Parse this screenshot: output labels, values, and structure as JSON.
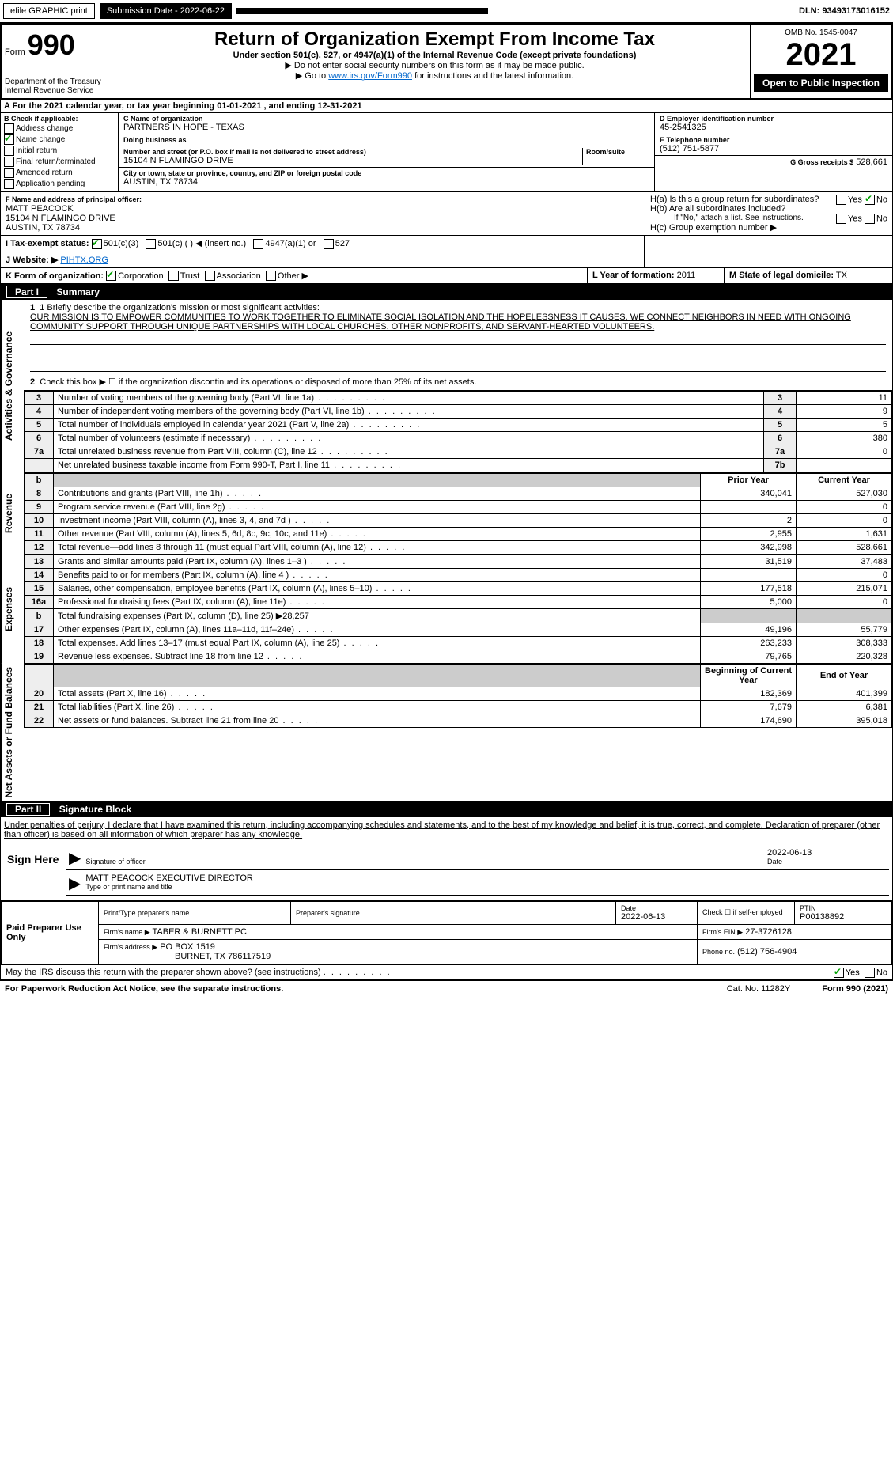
{
  "topbar": {
    "efile": "efile GRAPHIC print",
    "submission_label": "Submission Date - 2022-06-22",
    "dln": "DLN: 93493173016152"
  },
  "header": {
    "form_prefix": "Form",
    "form_number": "990",
    "dept": "Department of the Treasury",
    "irs": "Internal Revenue Service",
    "title": "Return of Organization Exempt From Income Tax",
    "subtitle": "Under section 501(c), 527, or 4947(a)(1) of the Internal Revenue Code (except private foundations)",
    "note1": "▶ Do not enter social security numbers on this form as it may be made public.",
    "note2_pre": "▶ Go to ",
    "note2_link": "www.irs.gov/Form990",
    "note2_post": " for instructions and the latest information.",
    "omb": "OMB No. 1545-0047",
    "year": "2021",
    "open": "Open to Public Inspection"
  },
  "row_a": "For the 2021 calendar year, or tax year beginning 01-01-2021    , and ending 12-31-2021",
  "b": {
    "title": "B Check if applicable:",
    "opts": [
      "Address change",
      "Name change",
      "Initial return",
      "Final return/terminated",
      "Amended return",
      "Application pending"
    ],
    "checked_idx": 1
  },
  "c": {
    "label": "C Name of organization",
    "name": "PARTNERS IN HOPE - TEXAS",
    "dba_label": "Doing business as",
    "dba": "",
    "addr_label": "Number and street (or P.O. box if mail is not delivered to street address)",
    "room_label": "Room/suite",
    "addr": "15104 N FLAMINGO DRIVE",
    "city_label": "City or town, state or province, country, and ZIP or foreign postal code",
    "city": "AUSTIN, TX  78734"
  },
  "d": {
    "label": "D Employer identification number",
    "value": "45-2541325"
  },
  "e": {
    "label": "E Telephone number",
    "value": "(512) 751-5877"
  },
  "g": {
    "label": "G Gross receipts $",
    "value": "528,661"
  },
  "f": {
    "label": "F  Name and address of principal officer:",
    "name": "MATT PEACOCK",
    "addr1": "15104 N FLAMINGO DRIVE",
    "addr2": "AUSTIN, TX  78734"
  },
  "h": {
    "a": "H(a)  Is this a group return for subordinates?",
    "b": "H(b)  Are all subordinates included?",
    "b_note": "If \"No,\" attach a list. See instructions.",
    "c": "H(c)  Group exemption number ▶",
    "yes": "Yes",
    "no": "No"
  },
  "i": {
    "label": "I   Tax-exempt status:",
    "o1": "501(c)(3)",
    "o2": "501(c) (  ) ◀ (insert no.)",
    "o3": "4947(a)(1) or",
    "o4": "527"
  },
  "j": {
    "label": "J   Website: ▶",
    "value": "PIHTX.ORG"
  },
  "k": {
    "label": "K Form of organization:",
    "opts": [
      "Corporation",
      "Trust",
      "Association",
      "Other ▶"
    ]
  },
  "l": {
    "label": "L Year of formation:",
    "value": "2011"
  },
  "m": {
    "label": "M State of legal domicile:",
    "value": "TX"
  },
  "part1": {
    "header": "Part I      Summary",
    "line1_label": "1  Briefly describe the organization's mission or most significant activities:",
    "mission": "OUR MISSION IS TO EMPOWER COMMUNITIES TO WORK TOGETHER TO ELIMINATE SOCIAL ISOLATION AND THE HOPELESSNESS IT CAUSES. WE CONNECT NEIGHBORS IN NEED WITH ONGOING COMMUNITY SUPPORT THROUGH UNIQUE PARTNERSHIPS WITH LOCAL CHURCHES, OTHER NONPROFITS, AND SERVANT-HEARTED VOLUNTEERS.",
    "line2": "Check this box ▶ ☐  if the organization discontinued its operations or disposed of more than 25% of its net assets.",
    "side_gov": "Activities & Governance",
    "side_rev": "Revenue",
    "side_exp": "Expenses",
    "side_net": "Net Assets or Fund Balances",
    "rows_top": [
      {
        "n": "3",
        "d": "Number of voting members of the governing body (Part VI, line 1a)",
        "b": "3",
        "v": "11"
      },
      {
        "n": "4",
        "d": "Number of independent voting members of the governing body (Part VI, line 1b)",
        "b": "4",
        "v": "9"
      },
      {
        "n": "5",
        "d": "Total number of individuals employed in calendar year 2021 (Part V, line 2a)",
        "b": "5",
        "v": "5"
      },
      {
        "n": "6",
        "d": "Total number of volunteers (estimate if necessary)",
        "b": "6",
        "v": "380"
      },
      {
        "n": "7a",
        "d": "Total unrelated business revenue from Part VIII, column (C), line 12",
        "b": "7a",
        "v": "0"
      },
      {
        "n": "",
        "d": "Net unrelated business taxable income from Form 990-T, Part I, line 11",
        "b": "7b",
        "v": ""
      }
    ],
    "col_prior": "Prior Year",
    "col_current": "Current Year",
    "rows_rev": [
      {
        "n": "8",
        "d": "Contributions and grants (Part VIII, line 1h)",
        "p": "340,041",
        "c": "527,030"
      },
      {
        "n": "9",
        "d": "Program service revenue (Part VIII, line 2g)",
        "p": "",
        "c": "0"
      },
      {
        "n": "10",
        "d": "Investment income (Part VIII, column (A), lines 3, 4, and 7d )",
        "p": "2",
        "c": "0"
      },
      {
        "n": "11",
        "d": "Other revenue (Part VIII, column (A), lines 5, 6d, 8c, 9c, 10c, and 11e)",
        "p": "2,955",
        "c": "1,631"
      },
      {
        "n": "12",
        "d": "Total revenue—add lines 8 through 11 (must equal Part VIII, column (A), line 12)",
        "p": "342,998",
        "c": "528,661"
      }
    ],
    "rows_exp": [
      {
        "n": "13",
        "d": "Grants and similar amounts paid (Part IX, column (A), lines 1–3 )",
        "p": "31,519",
        "c": "37,483"
      },
      {
        "n": "14",
        "d": "Benefits paid to or for members (Part IX, column (A), line 4 )",
        "p": "",
        "c": "0"
      },
      {
        "n": "15",
        "d": "Salaries, other compensation, employee benefits (Part IX, column (A), lines 5–10)",
        "p": "177,518",
        "c": "215,071"
      },
      {
        "n": "16a",
        "d": "Professional fundraising fees (Part IX, column (A), line 11e)",
        "p": "5,000",
        "c": "0"
      },
      {
        "n": "b",
        "d": "Total fundraising expenses (Part IX, column (D), line 25) ▶28,257",
        "p": "",
        "c": "",
        "grey": true
      },
      {
        "n": "17",
        "d": "Other expenses (Part IX, column (A), lines 11a–11d, 11f–24e)",
        "p": "49,196",
        "c": "55,779"
      },
      {
        "n": "18",
        "d": "Total expenses. Add lines 13–17 (must equal Part IX, column (A), line 25)",
        "p": "263,233",
        "c": "308,333"
      },
      {
        "n": "19",
        "d": "Revenue less expenses. Subtract line 18 from line 12",
        "p": "79,765",
        "c": "220,328"
      }
    ],
    "col_begin": "Beginning of Current Year",
    "col_end": "End of Year",
    "rows_net": [
      {
        "n": "20",
        "d": "Total assets (Part X, line 16)",
        "p": "182,369",
        "c": "401,399"
      },
      {
        "n": "21",
        "d": "Total liabilities (Part X, line 26)",
        "p": "7,679",
        "c": "6,381"
      },
      {
        "n": "22",
        "d": "Net assets or fund balances. Subtract line 21 from line 20",
        "p": "174,690",
        "c": "395,018"
      }
    ]
  },
  "part2": {
    "header": "Part II     Signature Block",
    "perjury": "Under penalties of perjury, I declare that I have examined this return, including accompanying schedules and statements, and to the best of my knowledge and belief, it is true, correct, and complete. Declaration of preparer (other than officer) is based on all information of which preparer has any knowledge."
  },
  "sign": {
    "label": "Sign Here",
    "sig_label": "Signature of officer",
    "date_label": "Date",
    "date": "2022-06-13",
    "name": "MATT PEACOCK  EXECUTIVE DIRECTOR",
    "name_label": "Type or print name and title"
  },
  "preparer": {
    "label": "Paid Preparer Use Only",
    "h_name": "Print/Type preparer's name",
    "h_sig": "Preparer's signature",
    "h_date": "Date",
    "date": "2022-06-13",
    "h_check": "Check ☐ if self-employed",
    "h_ptin": "PTIN",
    "ptin": "P00138892",
    "firm_name_l": "Firm's name    ▶",
    "firm_name": "TABER & BURNETT PC",
    "firm_ein_l": "Firm's EIN ▶",
    "firm_ein": "27-3726128",
    "firm_addr_l": "Firm's address ▶",
    "firm_addr": "PO BOX 1519",
    "firm_city": "BURNET, TX  786117519",
    "phone_l": "Phone no.",
    "phone": "(512) 756-4904"
  },
  "discuss": {
    "q": "May the IRS discuss this return with the preparer shown above? (see instructions)",
    "yes": "Yes",
    "no": "No"
  },
  "footer": {
    "left": "For Paperwork Reduction Act Notice, see the separate instructions.",
    "cat": "Cat. No. 11282Y",
    "form": "Form 990 (2021)"
  }
}
